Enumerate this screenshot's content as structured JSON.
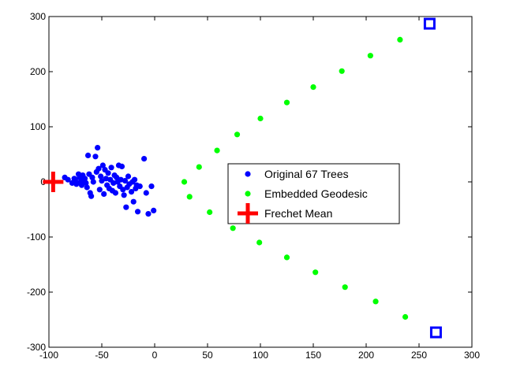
{
  "chart_data": {
    "type": "scatter",
    "title": "",
    "xlabel": "",
    "ylabel": "",
    "xlim": [
      -100,
      300
    ],
    "ylim": [
      -300,
      300
    ],
    "xticks": [
      -100,
      -50,
      0,
      50,
      100,
      150,
      200,
      250,
      300
    ],
    "yticks": [
      -300,
      -200,
      -100,
      0,
      100,
      200,
      300
    ],
    "grid": false,
    "legend_position": "center",
    "series": [
      {
        "name": "Original 67 Trees",
        "marker": "dot",
        "color": "#0000ff",
        "points": [
          [
            -85,
            8
          ],
          [
            -82,
            4
          ],
          [
            -78,
            -2
          ],
          [
            -76,
            6
          ],
          [
            -75,
            2
          ],
          [
            -74,
            -4
          ],
          [
            -72,
            14
          ],
          [
            -71,
            8
          ],
          [
            -70,
            0
          ],
          [
            -69,
            -6
          ],
          [
            -68,
            12
          ],
          [
            -67,
            3
          ],
          [
            -66,
            6
          ],
          [
            -65,
            -2
          ],
          [
            -64,
            -10
          ],
          [
            -63,
            48
          ],
          [
            -62,
            14
          ],
          [
            -61,
            -20
          ],
          [
            -60,
            -26
          ],
          [
            -59,
            8
          ],
          [
            -58,
            0
          ],
          [
            -56,
            46
          ],
          [
            -55,
            18
          ],
          [
            -54,
            62
          ],
          [
            -53,
            24
          ],
          [
            -52,
            -14
          ],
          [
            -51,
            10
          ],
          [
            -50,
            2
          ],
          [
            -49,
            30
          ],
          [
            -48,
            -22
          ],
          [
            -47,
            22
          ],
          [
            -46,
            6
          ],
          [
            -45,
            -6
          ],
          [
            -44,
            16
          ],
          [
            -43,
            -12
          ],
          [
            -42,
            4
          ],
          [
            -41,
            26
          ],
          [
            -40,
            -16
          ],
          [
            -39,
            -2
          ],
          [
            -38,
            12
          ],
          [
            -37,
            -20
          ],
          [
            -36,
            8
          ],
          [
            -35,
            0
          ],
          [
            -34,
            30
          ],
          [
            -33,
            -8
          ],
          [
            -32,
            4
          ],
          [
            -31,
            28
          ],
          [
            -30,
            -14
          ],
          [
            -29,
            -24
          ],
          [
            -28,
            2
          ],
          [
            -27,
            -46
          ],
          [
            -26,
            -10
          ],
          [
            -25,
            10
          ],
          [
            -24,
            -4
          ],
          [
            -22,
            -18
          ],
          [
            -21,
            0
          ],
          [
            -20,
            -36
          ],
          [
            -19,
            4
          ],
          [
            -18,
            -12
          ],
          [
            -17,
            -6
          ],
          [
            -16,
            -54
          ],
          [
            -14,
            -8
          ],
          [
            -10,
            42
          ],
          [
            -8,
            -20
          ],
          [
            -6,
            -58
          ],
          [
            -3,
            -8
          ],
          [
            -1,
            -52
          ]
        ]
      },
      {
        "name": "Embedded Geodesic",
        "marker": "dot",
        "color": "#00ff00",
        "points": [
          [
            28,
            0
          ],
          [
            42,
            27
          ],
          [
            59,
            57
          ],
          [
            78,
            86
          ],
          [
            100,
            115
          ],
          [
            125,
            144
          ],
          [
            150,
            172
          ],
          [
            177,
            201
          ],
          [
            204,
            229
          ],
          [
            232,
            258
          ],
          [
            33,
            -27
          ],
          [
            52,
            -55
          ],
          [
            74,
            -84
          ],
          [
            99,
            -110
          ],
          [
            125,
            -137
          ],
          [
            152,
            -164
          ],
          [
            180,
            -191
          ],
          [
            209,
            -217
          ],
          [
            237,
            -245
          ]
        ]
      },
      {
        "name": "Frechet Mean",
        "marker": "plus",
        "color": "#ff0000",
        "points": [
          [
            -96,
            0
          ]
        ]
      },
      {
        "name": "",
        "marker": "square",
        "color": "#0000ff",
        "points": [
          [
            260,
            287
          ],
          [
            266,
            -273
          ]
        ]
      }
    ],
    "legend_entries": [
      "Original 67 Trees",
      "Embedded Geodesic",
      "Frechet Mean"
    ]
  }
}
